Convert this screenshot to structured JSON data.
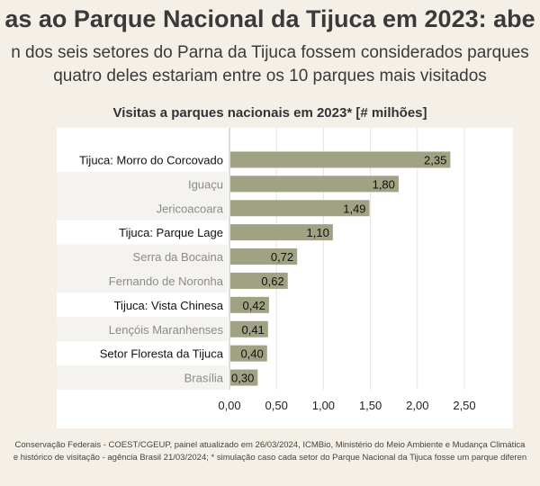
{
  "header": {
    "title": "as ao Parque Nacional da Tijuca em 2023: abe",
    "subtitle_line1": "n dos seis setores do Parna da Tijuca fossem considerados parques",
    "subtitle_line2": "quatro deles estariam entre os 10 parques mais visitados"
  },
  "footer": {
    "source_line1": "Conservação Federais - COEST/CGEUP, painel atualizado em 26/03/2024, ICMBio, Ministério do Meio Ambiente e Mudança Climática",
    "source_line2": "e histórico de visitação - agência Brasil 21/03/2024; * simulação caso cada setor do Parque Nacional da Tijuca fosse um parque diferen"
  },
  "colors": {
    "bar": "#a0a283",
    "highlight_label": "#111111",
    "other_label": "#8a8a8a",
    "band": "#f5f3ef"
  },
  "chart_data": {
    "type": "bar",
    "orientation": "horizontal",
    "title": "Visitas a parques nacionais em 2023* [# milhões]",
    "categories": [
      "Tijuca: Morro do Corcovado",
      "Iguaçu",
      "Jericoacoara",
      "Tijuca: Parque Lage",
      "Serra da Bocaina",
      "Fernando de Noronha",
      "Tijuca: Vista Chinesa",
      "Lençóis Maranhenses",
      "Setor Floresta da Tijuca",
      "Brasília"
    ],
    "values": [
      2.35,
      1.8,
      1.49,
      1.1,
      0.72,
      0.62,
      0.42,
      0.41,
      0.4,
      0.3
    ],
    "data_labels": [
      "2,35",
      "1,80",
      "1,49",
      "1,10",
      "0,72",
      "0,62",
      "0,42",
      "0,41",
      "0,40",
      "0,30"
    ],
    "highlighted": [
      true,
      false,
      false,
      true,
      false,
      false,
      true,
      false,
      true,
      false
    ],
    "xlim": [
      0,
      2.5
    ],
    "xticks": [
      0,
      0.5,
      1,
      1.5,
      2,
      2.5
    ],
    "xtick_labels": [
      "0,00",
      "0,50",
      "1,00",
      "1,50",
      "2,00",
      "2,50"
    ],
    "grid": true
  }
}
